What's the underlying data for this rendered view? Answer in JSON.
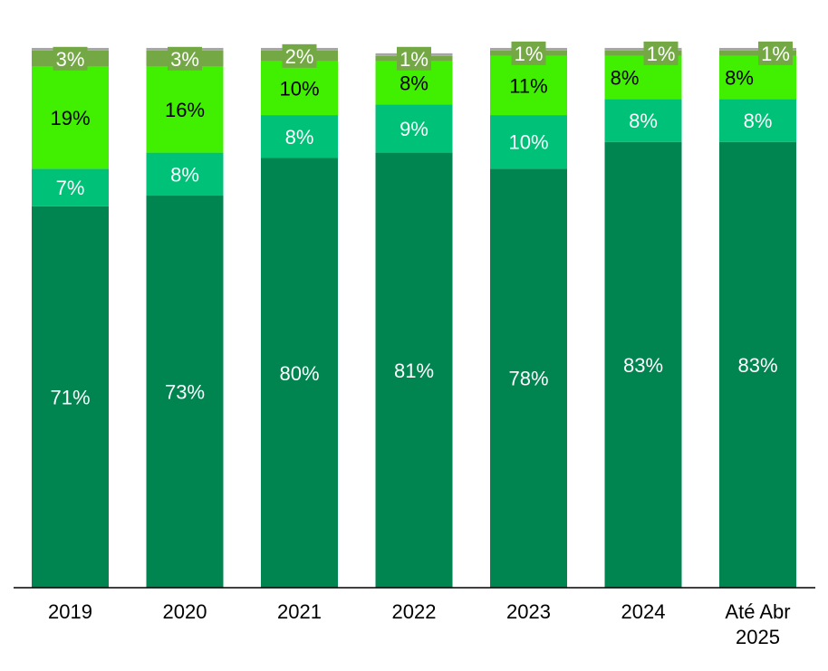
{
  "chart_data": {
    "type": "bar",
    "stacked": true,
    "categories": [
      "2019",
      "2020",
      "2021",
      "2022",
      "2023",
      "2024",
      "Até Abr 2025"
    ],
    "category_label_lines": [
      [
        "2019"
      ],
      [
        "2020"
      ],
      [
        "2021"
      ],
      [
        "2022"
      ],
      [
        "2023"
      ],
      [
        "2024"
      ],
      [
        "Até Abr",
        "2025"
      ]
    ],
    "series": [
      {
        "values": [
          71,
          73,
          80,
          81,
          78,
          83,
          83
        ],
        "labels": [
          "71%",
          "73%",
          "80%",
          "81%",
          "78%",
          "83%",
          "83%"
        ],
        "color": "#008450",
        "label_color": "#ffffff"
      },
      {
        "values": [
          7,
          8,
          8,
          9,
          10,
          8,
          8
        ],
        "labels": [
          "7%",
          "8%",
          "8%",
          "9%",
          "10%",
          "8%",
          "8%"
        ],
        "color": "#00C178",
        "label_color": "#ffffff"
      },
      {
        "values": [
          19,
          16,
          10,
          8,
          11,
          8,
          8
        ],
        "labels": [
          "19%",
          "16%",
          "10%",
          "8%",
          "11%",
          "8%",
          "8%"
        ],
        "color": "#40F000",
        "label_color": "#000000"
      },
      {
        "values": [
          3,
          3,
          2,
          1,
          1,
          1,
          1
        ],
        "labels": [
          "3%",
          "3%",
          "2%",
          "1%",
          "1%",
          "1%",
          "1%"
        ],
        "color": "#73A844",
        "label_color": "#ffffff"
      },
      {
        "values": [
          0.5,
          0.5,
          0.5,
          0.5,
          0.5,
          0.5,
          0.5
        ],
        "labels": [
          "",
          "",
          "",
          "",
          "",
          "",
          ""
        ],
        "color": "#A5A5A5",
        "label_color": "#ffffff"
      }
    ],
    "ylim": [
      0,
      100
    ],
    "grid": false,
    "legend": "none",
    "title": "",
    "xlabel": "",
    "ylabel": ""
  }
}
